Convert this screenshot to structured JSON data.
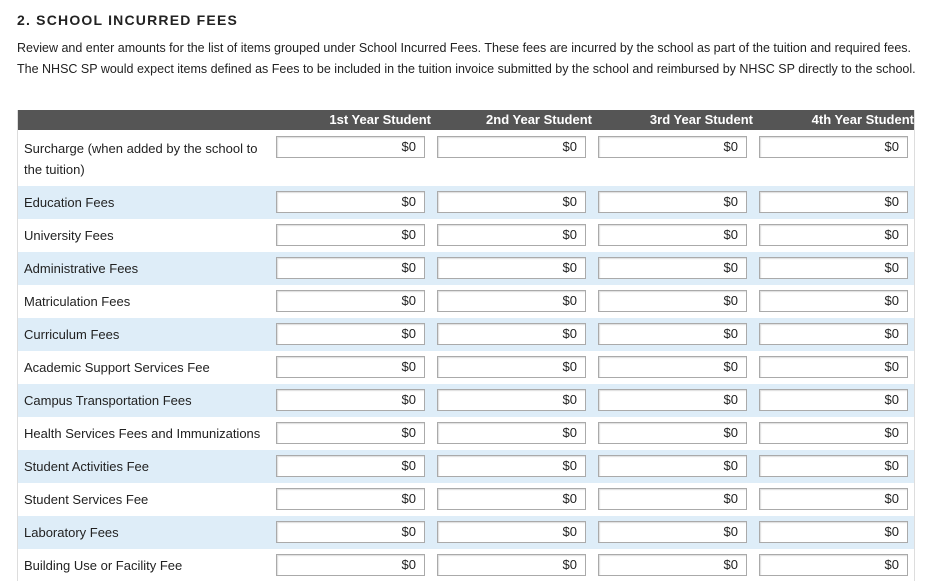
{
  "section": {
    "title": "2. SCHOOL INCURRED FEES",
    "description": "Review and enter amounts for the list of items grouped under School Incurred Fees. These fees are incurred by the school as part of the tuition and required fees. The NHSC SP would expect items defined as Fees to be included in the tuition invoice submitted by the school and reimbursed by NHSC SP directly to the school."
  },
  "table": {
    "columns": [
      "1st Year Student",
      "2nd Year Student",
      "3rd Year Student",
      "4th Year Student"
    ],
    "rows": [
      {
        "label": "Surcharge (when added by the school to the tuition)",
        "values": [
          "$0",
          "$0",
          "$0",
          "$0"
        ]
      },
      {
        "label": "Education Fees",
        "values": [
          "$0",
          "$0",
          "$0",
          "$0"
        ]
      },
      {
        "label": "University Fees",
        "values": [
          "$0",
          "$0",
          "$0",
          "$0"
        ]
      },
      {
        "label": "Administrative Fees",
        "values": [
          "$0",
          "$0",
          "$0",
          "$0"
        ]
      },
      {
        "label": "Matriculation Fees",
        "values": [
          "$0",
          "$0",
          "$0",
          "$0"
        ]
      },
      {
        "label": "Curriculum Fees",
        "values": [
          "$0",
          "$0",
          "$0",
          "$0"
        ]
      },
      {
        "label": "Academic Support Services Fee",
        "values": [
          "$0",
          "$0",
          "$0",
          "$0"
        ]
      },
      {
        "label": "Campus Transportation Fees",
        "values": [
          "$0",
          "$0",
          "$0",
          "$0"
        ]
      },
      {
        "label": "Health Services Fees and Immunizations",
        "values": [
          "$0",
          "$0",
          "$0",
          "$0"
        ]
      },
      {
        "label": "Student Activities Fee",
        "values": [
          "$0",
          "$0",
          "$0",
          "$0"
        ]
      },
      {
        "label": "Student Services Fee",
        "values": [
          "$0",
          "$0",
          "$0",
          "$0"
        ]
      },
      {
        "label": "Laboratory Fees",
        "values": [
          "$0",
          "$0",
          "$0",
          "$0"
        ]
      },
      {
        "label": "Building Use or Facility Fee",
        "values": [
          "$0",
          "$0",
          "$0",
          "$0"
        ]
      }
    ]
  }
}
